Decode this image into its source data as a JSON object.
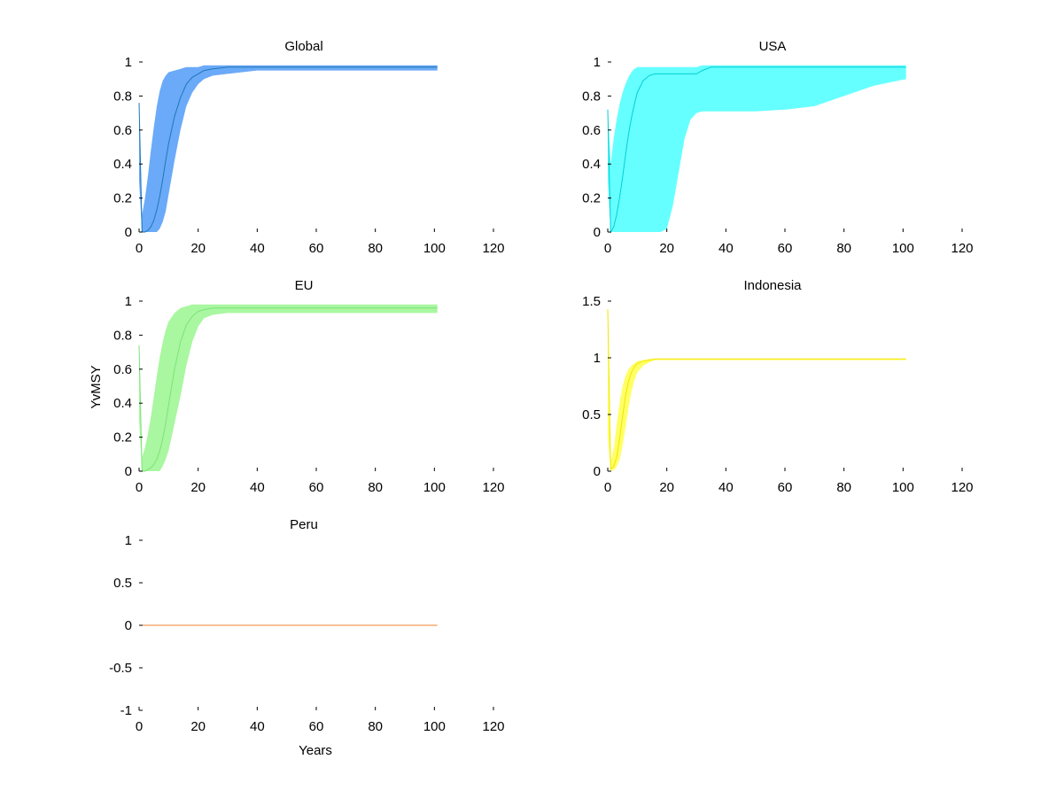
{
  "figure": {
    "ylabel": "YvMSY",
    "xlabel": "Years"
  },
  "chart_data": [
    {
      "type": "area",
      "title": "Global",
      "xlim": [
        0,
        120
      ],
      "ylim": [
        0,
        1
      ],
      "xticks": [
        0,
        20,
        40,
        60,
        80,
        100,
        120
      ],
      "yticks": [
        0,
        0.2,
        0.4,
        0.6,
        0.8,
        1
      ],
      "ytick_labels": [
        "0",
        "0.2",
        "0.4",
        "0.6",
        "0.8",
        "1"
      ],
      "color": "#6aaaf8",
      "line_color": "#1f77b4",
      "x": [
        0,
        1,
        2,
        3,
        4,
        5,
        6,
        7,
        8,
        9,
        10,
        12,
        14,
        16,
        18,
        20,
        22,
        25,
        30,
        35,
        40,
        50,
        60,
        80,
        101
      ],
      "median": [
        0.76,
        0.0,
        0.0,
        0.01,
        0.03,
        0.07,
        0.13,
        0.21,
        0.31,
        0.42,
        0.52,
        0.68,
        0.79,
        0.87,
        0.91,
        0.93,
        0.95,
        0.96,
        0.97,
        0.97,
        0.97,
        0.97,
        0.97,
        0.97,
        0.97
      ],
      "upper": [
        0.76,
        0.1,
        0.2,
        0.33,
        0.48,
        0.62,
        0.74,
        0.83,
        0.89,
        0.92,
        0.94,
        0.95,
        0.96,
        0.97,
        0.97,
        0.97,
        0.98,
        0.98,
        0.98,
        0.98,
        0.98,
        0.98,
        0.98,
        0.98,
        0.98
      ],
      "lower": [
        0.3,
        0.0,
        0.0,
        0.0,
        0.0,
        0.0,
        0.0,
        0.02,
        0.06,
        0.12,
        0.22,
        0.42,
        0.6,
        0.74,
        0.82,
        0.87,
        0.9,
        0.92,
        0.93,
        0.94,
        0.95,
        0.95,
        0.95,
        0.95,
        0.95
      ]
    },
    {
      "type": "area",
      "title": "USA",
      "xlim": [
        0,
        120
      ],
      "ylim": [
        0,
        1
      ],
      "xticks": [
        0,
        20,
        40,
        60,
        80,
        100,
        120
      ],
      "yticks": [
        0,
        0.2,
        0.4,
        0.6,
        0.8,
        1
      ],
      "ytick_labels": [
        "0",
        "0.2",
        "0.4",
        "0.6",
        "0.8",
        "1"
      ],
      "color": "#66ffff",
      "line_color": "#00cfd6",
      "x": [
        0,
        1,
        2,
        3,
        4,
        5,
        6,
        7,
        8,
        9,
        10,
        12,
        14,
        16,
        18,
        20,
        22,
        24,
        26,
        28,
        30,
        32,
        35,
        40,
        50,
        60,
        70,
        80,
        90,
        101
      ],
      "median": [
        0.72,
        0.0,
        0.03,
        0.1,
        0.2,
        0.32,
        0.45,
        0.57,
        0.67,
        0.75,
        0.82,
        0.89,
        0.92,
        0.93,
        0.93,
        0.93,
        0.93,
        0.93,
        0.93,
        0.93,
        0.93,
        0.95,
        0.97,
        0.97,
        0.97,
        0.97,
        0.97,
        0.97,
        0.97,
        0.97
      ],
      "upper": [
        0.72,
        0.4,
        0.55,
        0.66,
        0.75,
        0.82,
        0.87,
        0.91,
        0.94,
        0.96,
        0.97,
        0.97,
        0.97,
        0.97,
        0.97,
        0.97,
        0.97,
        0.97,
        0.97,
        0.97,
        0.97,
        0.98,
        0.98,
        0.98,
        0.98,
        0.98,
        0.98,
        0.98,
        0.98,
        0.98
      ],
      "lower": [
        0.3,
        0.0,
        0.0,
        0.0,
        0.0,
        0.0,
        0.0,
        0.0,
        0.0,
        0.0,
        0.0,
        0.0,
        0.0,
        0.0,
        0.0,
        0.02,
        0.15,
        0.35,
        0.55,
        0.66,
        0.7,
        0.71,
        0.71,
        0.71,
        0.71,
        0.72,
        0.74,
        0.8,
        0.86,
        0.9
      ]
    },
    {
      "type": "area",
      "title": "EU",
      "xlim": [
        0,
        120
      ],
      "ylim": [
        0,
        1
      ],
      "xticks": [
        0,
        20,
        40,
        60,
        80,
        100,
        120
      ],
      "yticks": [
        0,
        0.2,
        0.4,
        0.6,
        0.8,
        1
      ],
      "ytick_labels": [
        "0",
        "0.2",
        "0.4",
        "0.6",
        "0.8",
        "1"
      ],
      "color": "#a9f7a0",
      "line_color": "#7ee27a",
      "x": [
        0,
        1,
        2,
        3,
        4,
        5,
        6,
        7,
        8,
        9,
        10,
        12,
        14,
        16,
        18,
        20,
        22,
        25,
        30,
        35,
        40,
        50,
        60,
        80,
        101
      ],
      "median": [
        0.74,
        0.0,
        0.0,
        0.01,
        0.02,
        0.04,
        0.07,
        0.12,
        0.19,
        0.28,
        0.39,
        0.6,
        0.76,
        0.86,
        0.91,
        0.94,
        0.95,
        0.96,
        0.96,
        0.96,
        0.96,
        0.96,
        0.96,
        0.96,
        0.96
      ],
      "upper": [
        0.74,
        0.08,
        0.14,
        0.22,
        0.32,
        0.44,
        0.56,
        0.67,
        0.76,
        0.83,
        0.88,
        0.93,
        0.96,
        0.97,
        0.98,
        0.98,
        0.98,
        0.98,
        0.98,
        0.98,
        0.98,
        0.98,
        0.98,
        0.98,
        0.98
      ],
      "lower": [
        0.3,
        0.0,
        0.0,
        0.0,
        0.0,
        0.0,
        0.0,
        0.0,
        0.03,
        0.07,
        0.12,
        0.28,
        0.44,
        0.62,
        0.76,
        0.85,
        0.9,
        0.92,
        0.93,
        0.93,
        0.93,
        0.93,
        0.93,
        0.93,
        0.93
      ]
    },
    {
      "type": "area",
      "title": "Indonesia",
      "xlim": [
        0,
        120
      ],
      "ylim": [
        0,
        1.5
      ],
      "xticks": [
        0,
        20,
        40,
        60,
        80,
        100,
        120
      ],
      "yticks": [
        0,
        0.5,
        1,
        1.5
      ],
      "ytick_labels": [
        "0",
        "0.5",
        "1",
        "1.5"
      ],
      "color": "#ffff66",
      "line_color": "#f2e600",
      "x": [
        0,
        1,
        2,
        3,
        4,
        5,
        6,
        7,
        8,
        9,
        10,
        12,
        14,
        16,
        18,
        20,
        25,
        30,
        40,
        60,
        80,
        101
      ],
      "median": [
        1.43,
        0.02,
        0.04,
        0.12,
        0.28,
        0.48,
        0.66,
        0.79,
        0.87,
        0.92,
        0.95,
        0.97,
        0.98,
        0.99,
        0.99,
        0.99,
        0.99,
        0.99,
        0.99,
        0.99,
        0.99,
        0.99
      ],
      "upper": [
        1.43,
        0.08,
        0.2,
        0.4,
        0.6,
        0.75,
        0.84,
        0.9,
        0.93,
        0.95,
        0.97,
        0.98,
        0.99,
        0.99,
        0.99,
        0.99,
        0.99,
        0.99,
        0.99,
        0.99,
        0.99,
        0.99
      ],
      "lower": [
        0.3,
        0.0,
        0.01,
        0.04,
        0.1,
        0.22,
        0.38,
        0.55,
        0.7,
        0.8,
        0.87,
        0.93,
        0.96,
        0.98,
        0.98,
        0.98,
        0.98,
        0.98,
        0.98,
        0.98,
        0.98,
        0.98
      ]
    },
    {
      "type": "line",
      "title": "Peru",
      "xlim": [
        0,
        120
      ],
      "ylim": [
        -1,
        1
      ],
      "xticks": [
        0,
        20,
        40,
        60,
        80,
        100,
        120
      ],
      "yticks": [
        -1,
        -0.5,
        0,
        0.5,
        1
      ],
      "ytick_labels": [
        "-1",
        "-0.5",
        "0",
        "0.5",
        "1"
      ],
      "color": "#f08030",
      "line_color": "#f08030",
      "x": [
        0,
        101
      ],
      "median": [
        0,
        0
      ],
      "upper": [
        0,
        0
      ],
      "lower": [
        0,
        0
      ]
    }
  ]
}
